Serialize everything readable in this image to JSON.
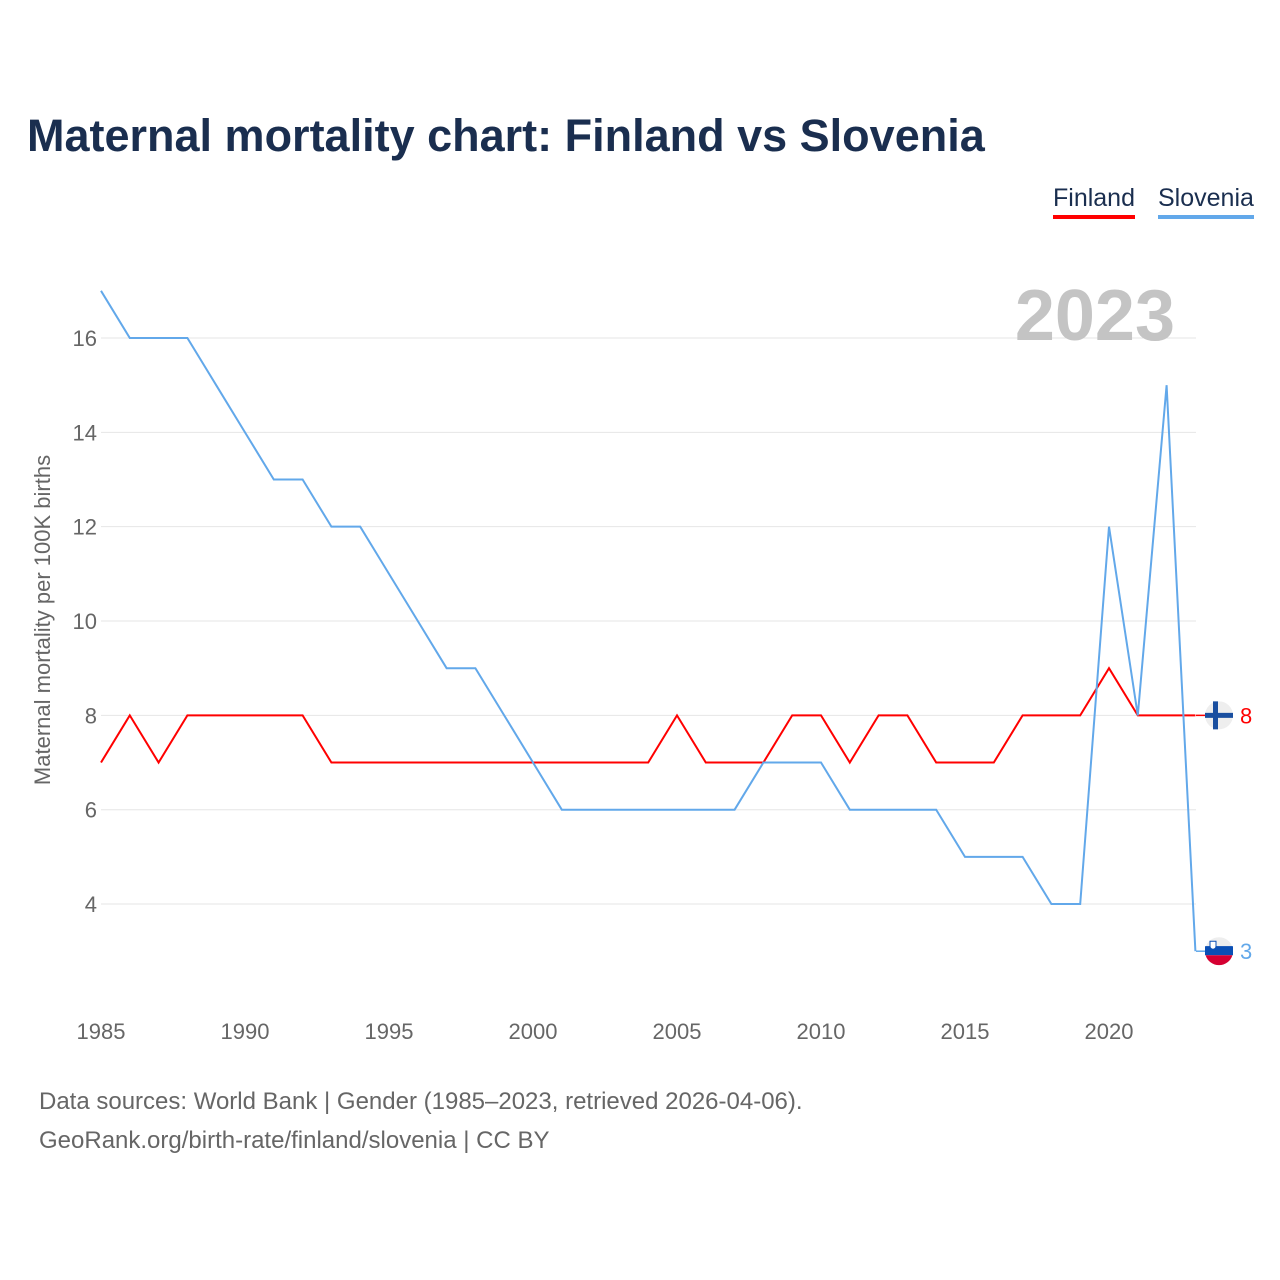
{
  "title": "Maternal mortality chart: Finland vs Slovenia",
  "legend": [
    {
      "label": "Finland",
      "color": "#ff0000"
    },
    {
      "label": "Slovenia",
      "color": "#62a8ea"
    }
  ],
  "year_watermark": "2023",
  "footer": {
    "line1": "Data sources: World Bank | Gender (1985–2023, retrieved 2026-04-06).",
    "line2": "GeoRank.org/birth-rate/finland/slovenia | CC BY"
  },
  "chart_data": {
    "type": "line",
    "title": "Maternal mortality chart: Finland vs Slovenia",
    "xlabel": "",
    "ylabel": "Maternal mortality per 100K births",
    "x": [
      1985,
      1986,
      1987,
      1988,
      1989,
      1990,
      1991,
      1992,
      1993,
      1994,
      1995,
      1996,
      1997,
      1998,
      1999,
      2000,
      2001,
      2002,
      2003,
      2004,
      2005,
      2006,
      2007,
      2008,
      2009,
      2010,
      2011,
      2012,
      2013,
      2014,
      2015,
      2016,
      2017,
      2018,
      2019,
      2020,
      2021,
      2022,
      2023
    ],
    "xticks": [
      1985,
      1990,
      1995,
      2000,
      2005,
      2010,
      2015,
      2020
    ],
    "yticks": [
      4,
      6,
      8,
      10,
      12,
      14,
      16
    ],
    "xlim": [
      1985,
      2023
    ],
    "ylim": [
      2.8,
      17
    ],
    "grid": true,
    "legend_position": "top-right",
    "series": [
      {
        "name": "Finland",
        "color": "#ff0000",
        "end_label": "8",
        "values": [
          7,
          8,
          7,
          8,
          8,
          8,
          8,
          8,
          7,
          7,
          7,
          7,
          7,
          7,
          7,
          7,
          7,
          7,
          7,
          7,
          8,
          7,
          7,
          7,
          8,
          8,
          7,
          8,
          8,
          7,
          7,
          7,
          8,
          8,
          8,
          9,
          8,
          8,
          8
        ]
      },
      {
        "name": "Slovenia",
        "color": "#62a8ea",
        "end_label": "3",
        "values": [
          17,
          16,
          16,
          16,
          15,
          14,
          13,
          13,
          12,
          12,
          11,
          10,
          9,
          9,
          8,
          7,
          6,
          6,
          6,
          6,
          6,
          6,
          6,
          7,
          7,
          7,
          6,
          6,
          6,
          6,
          5,
          5,
          5,
          4,
          4,
          12,
          8,
          15,
          3
        ]
      }
    ]
  }
}
